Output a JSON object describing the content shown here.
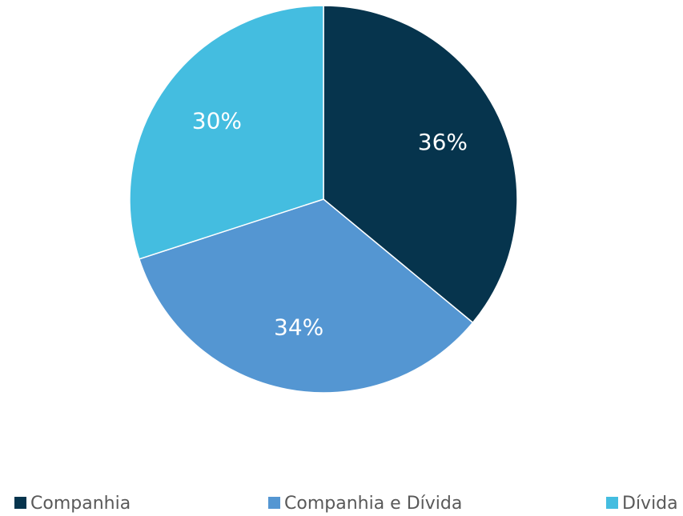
{
  "chart_data": {
    "type": "pie",
    "categories": [
      "Companhia",
      "Companhia e Dívida",
      "Dívida"
    ],
    "values": [
      36,
      34,
      30
    ],
    "value_labels": [
      "36%",
      "34%",
      "30%"
    ],
    "colors": [
      "#06344d",
      "#5496d2",
      "#44bde0"
    ],
    "legend": "bottom"
  }
}
